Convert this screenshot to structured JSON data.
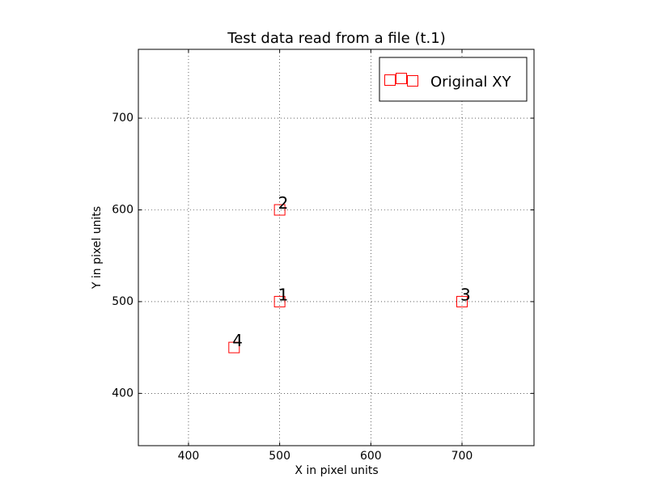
{
  "chart_data": {
    "type": "scatter",
    "title": "Test data read from a file (t.1)",
    "x_label": "X in pixel units",
    "y_label": "Y in pixel units",
    "x": [
      500,
      500,
      700,
      450
    ],
    "series": [
      {
        "name": "Original XY",
        "color": "#ff0000",
        "values": [
          500,
          600,
          500,
          450
        ]
      }
    ],
    "point_labels": [
      "1",
      "2",
      "3",
      "4"
    ],
    "xlim": [
      345,
      779
    ],
    "ylim": [
      343,
      775
    ],
    "xticks": [
      400,
      500,
      600,
      700
    ],
    "yticks": [
      400,
      500,
      600,
      700
    ],
    "grid": true,
    "legend_position": "upper right"
  }
}
